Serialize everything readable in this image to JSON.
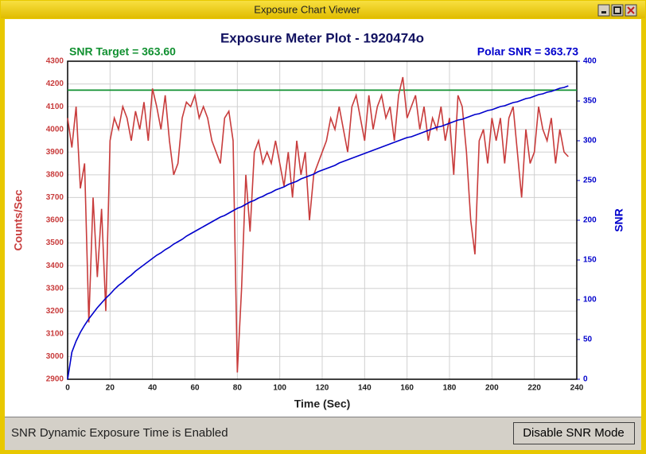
{
  "window": {
    "title": "Exposure Chart Viewer"
  },
  "chart_data": {
    "type": "line",
    "title": "Exposure Meter Plot - 1920474o",
    "annotations": [
      "SNR Target = 363.60",
      "Polar SNR = 363.73"
    ],
    "x_label": "Time (Sec)",
    "y_label": "Counts/Sec",
    "y2_label": "SNR",
    "x": [
      0,
      2,
      4,
      6,
      8,
      10,
      12,
      14,
      16,
      18,
      20,
      22,
      24,
      26,
      28,
      30,
      32,
      34,
      36,
      38,
      40,
      42,
      44,
      46,
      48,
      50,
      52,
      54,
      56,
      58,
      60,
      62,
      64,
      66,
      68,
      70,
      72,
      74,
      76,
      78,
      80,
      82,
      84,
      86,
      88,
      90,
      92,
      94,
      96,
      98,
      100,
      102,
      104,
      106,
      108,
      110,
      112,
      114,
      116,
      118,
      120,
      122,
      124,
      126,
      128,
      130,
      132,
      134,
      136,
      138,
      140,
      142,
      144,
      146,
      148,
      150,
      152,
      154,
      156,
      158,
      160,
      162,
      164,
      166,
      168,
      170,
      172,
      174,
      176,
      178,
      180,
      182,
      184,
      186,
      188,
      190,
      192,
      194,
      196,
      198,
      200,
      202,
      204,
      206,
      208,
      210,
      212,
      214,
      216,
      218,
      220,
      222,
      224,
      226,
      228,
      230,
      232,
      234,
      236
    ],
    "series": [
      {
        "color": "#c83c3c",
        "values": [
          4050,
          3920,
          4100,
          3740,
          3850,
          3150,
          3700,
          3350,
          3650,
          3200,
          3950,
          4050,
          4000,
          4100,
          4050,
          3950,
          4080,
          4000,
          4120,
          3950,
          4180,
          4100,
          4000,
          4150,
          3950,
          3800,
          3850,
          4050,
          4120,
          4100,
          4150,
          4050,
          4100,
          4050,
          3950,
          3900,
          3850,
          4050,
          4080,
          3950,
          2930,
          3300,
          3800,
          3550,
          3900,
          3950,
          3850,
          3900,
          3850,
          3950,
          3850,
          3750,
          3900,
          3700,
          3950,
          3800,
          3900,
          3600,
          3800,
          3850,
          3900,
          3950,
          4050,
          4000,
          4100,
          4000,
          3900,
          4100,
          4150,
          4050,
          3950,
          4150,
          4000,
          4100,
          4150,
          4050,
          4100,
          3950,
          4150,
          4230,
          4050,
          4100,
          4150,
          4000,
          4100,
          3950,
          4050,
          4000,
          4100,
          3950,
          4050,
          3800,
          4150,
          4100,
          3900,
          3600,
          3450,
          3950,
          4000,
          3850,
          4050,
          3950,
          4050,
          3850,
          4050,
          4100,
          3900,
          3700,
          4000,
          3850,
          3900,
          4100,
          4000,
          3950,
          4050,
          3850,
          4000,
          3900,
          3880
        ]
      },
      {
        "color": "#0000cc",
        "axis": "y2",
        "values": [
          0,
          34,
          48,
          59,
          68,
          76,
          83,
          90,
          96,
          102,
          107,
          113,
          118,
          122,
          127,
          131,
          136,
          140,
          144,
          148,
          152,
          156,
          159,
          163,
          166,
          170,
          173,
          176,
          180,
          183,
          186,
          189,
          192,
          195,
          198,
          201,
          204,
          206,
          209,
          212,
          215,
          217,
          220,
          223,
          225,
          228,
          230,
          233,
          235,
          238,
          240,
          242,
          245,
          247,
          249,
          252,
          254,
          256,
          258,
          261,
          263,
          265,
          267,
          269,
          272,
          274,
          276,
          278,
          280,
          282,
          284,
          286,
          288,
          290,
          292,
          294,
          296,
          298,
          300,
          302,
          304,
          305,
          307,
          309,
          311,
          313,
          315,
          317,
          318,
          320,
          322,
          324,
          326,
          327,
          329,
          331,
          333,
          334,
          336,
          338,
          339,
          341,
          343,
          344,
          346,
          348,
          349,
          351,
          353,
          354,
          356,
          358,
          359,
          361,
          362,
          364,
          366,
          367,
          369
        ]
      }
    ],
    "reference_lines": [
      {
        "value": 363.6,
        "axis": "y2",
        "color": "#109030"
      }
    ],
    "xlim": [
      0,
      240
    ],
    "xticks": [
      0,
      20,
      40,
      60,
      80,
      100,
      120,
      140,
      160,
      180,
      200,
      220,
      240
    ],
    "ylim": [
      2900,
      4300
    ],
    "yticks": [
      2900,
      3000,
      3100,
      3200,
      3300,
      3400,
      3500,
      3600,
      3700,
      3800,
      3900,
      4000,
      4100,
      4200,
      4300
    ],
    "y2lim": [
      0,
      400
    ],
    "y2ticks": [
      0,
      50,
      100,
      150,
      200,
      250,
      300,
      350,
      400
    ],
    "grid": true
  },
  "status": {
    "text": "SNR Dynamic Exposure Time is Enabled",
    "button": "Disable SNR Mode"
  }
}
